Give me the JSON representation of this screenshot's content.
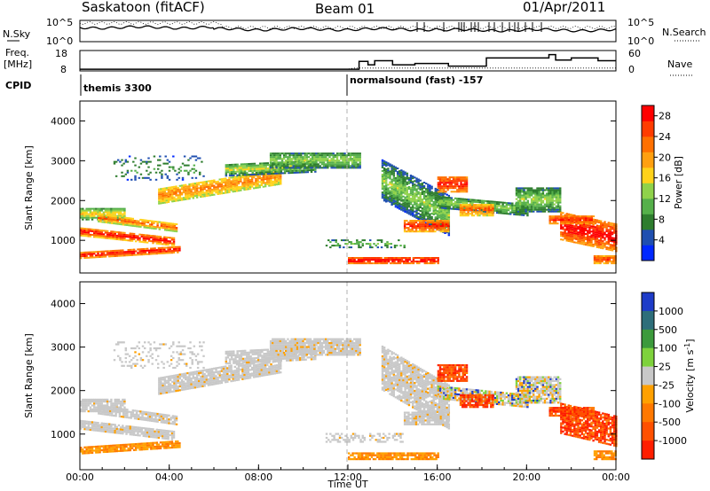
{
  "header": {
    "station": "Saskatoon (fitACF)",
    "beam": "Beam 01",
    "date": "01/Apr/2011"
  },
  "chart_data": [
    {
      "type": "line",
      "panel": "noise",
      "left_label": "N.Sky",
      "right_label": "N.Search",
      "left_ticks": [
        "10^5",
        "10^0"
      ],
      "right_ticks": [
        "10^5",
        "10^0"
      ],
      "scale": "log",
      "ylim": [
        1,
        100000
      ]
    },
    {
      "type": "line",
      "panel": "frequency",
      "left_label_line1": "Freq.",
      "left_label_line2": "[MHz]",
      "right_label": "Nave",
      "left_ticks": [
        18,
        8
      ],
      "right_ticks": [
        60,
        0
      ],
      "freq_ylim": [
        8,
        18
      ],
      "nave_ylim": [
        0,
        60
      ],
      "nave_steps": [
        {
          "t": 0.0,
          "v": 5
        },
        {
          "t": 12.5,
          "v": 28
        },
        {
          "t": 12.9,
          "v": 18
        },
        {
          "t": 13.2,
          "v": 30
        },
        {
          "t": 14.0,
          "v": 18
        },
        {
          "t": 15.0,
          "v": 22
        },
        {
          "t": 16.5,
          "v": 14
        },
        {
          "t": 18.2,
          "v": 38
        },
        {
          "t": 20.5,
          "v": 38
        },
        {
          "t": 21.0,
          "v": 48
        },
        {
          "t": 21.3,
          "v": 32
        },
        {
          "t": 22.0,
          "v": 38
        },
        {
          "t": 23.2,
          "v": 30
        },
        {
          "t": 24.0,
          "v": 30
        }
      ]
    },
    {
      "type": "table",
      "panel": "cpid",
      "label": "CPID",
      "entries": [
        {
          "t": 0.0,
          "text": "themis 3300"
        },
        {
          "t": 12.0,
          "text": "normalsound (fast) -157"
        }
      ]
    },
    {
      "type": "heatmap",
      "panel": "power",
      "ylabel": "Slant Range [km]",
      "xlim": [
        0,
        24
      ],
      "ylim": [
        180,
        4500
      ],
      "yticks": [
        1000,
        2000,
        3000,
        4000
      ],
      "colorbar_label": "Power [dB]",
      "colorbar_ticks": [
        28,
        24,
        20,
        16,
        12,
        8,
        4
      ],
      "colorbar_range": [
        0,
        30
      ],
      "colors": [
        "#0028ff",
        "#1f4fb0",
        "#2e7d2e",
        "#55b04a",
        "#8fd24a",
        "#ffd21a",
        "#ffa010",
        "#ff7000",
        "#ff3c00",
        "#ff0000"
      ]
    },
    {
      "type": "heatmap",
      "panel": "velocity",
      "ylabel": "Slant Range [km]",
      "xlabel": "Time UT",
      "xlim": [
        0,
        24
      ],
      "ylim": [
        180,
        4500
      ],
      "yticks": [
        1000,
        2000,
        3000,
        4000
      ],
      "xtick_labels": [
        "00:00",
        "04:00",
        "08:00",
        "12:00",
        "16:00",
        "20:00",
        "00:00"
      ],
      "xticks": [
        0,
        4,
        8,
        12,
        16,
        20,
        24
      ],
      "colorbar_label": "Velocity [m s",
      "colorbar_label_sup": "-1",
      "colorbar_label_end": "]",
      "colorbar_ticks": [
        "1000",
        "500",
        "100",
        "25",
        "-25",
        "-100",
        "-500",
        "-1000"
      ],
      "colors": [
        "#1e3cc8",
        "#2e6e7a",
        "#3c9a3c",
        "#7ed23c",
        "#c8c8c8",
        "#ffa000",
        "#ff7800",
        "#ff5000",
        "#ff1e00"
      ],
      "ground_scatter_color": "#c8c8c8"
    }
  ]
}
